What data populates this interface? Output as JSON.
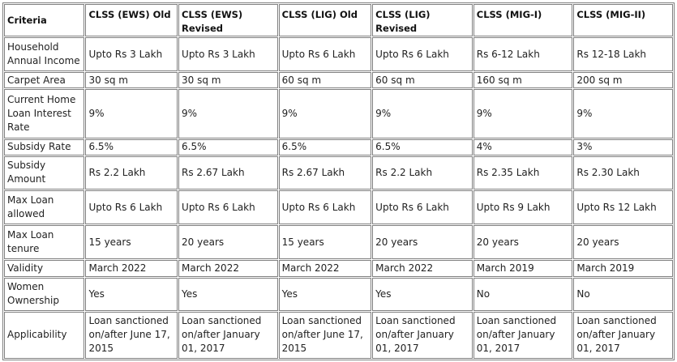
{
  "table": {
    "headers": [
      "Criteria",
      "CLSS (EWS) Old",
      "CLSS (EWS) Revised",
      "CLSS (LIG) Old",
      "CLSS (LIG) Revised",
      "CLSS (MIG-I)",
      "CLSS (MIG-II)"
    ],
    "rows": [
      {
        "criteria": "Household Annual Income",
        "cells": [
          "Upto Rs 3 Lakh",
          "Upto Rs 3 Lakh",
          "Upto Rs 6 Lakh",
          "Upto Rs 6 Lakh",
          "Rs 6-12 Lakh",
          "Rs 12-18 Lakh"
        ]
      },
      {
        "criteria": "Carpet Area",
        "cells": [
          "30 sq m",
          "30 sq m",
          "60 sq m",
          "60 sq m",
          "160 sq m",
          "200 sq m"
        ]
      },
      {
        "criteria": "Current Home Loan Interest Rate",
        "cells": [
          "9%",
          "9%",
          "9%",
          "9%",
          "9%",
          "9%"
        ]
      },
      {
        "criteria": "Subsidy Rate",
        "cells": [
          "6.5%",
          "6.5%",
          "6.5%",
          "6.5%",
          "4%",
          "3%"
        ]
      },
      {
        "criteria": "Subsidy Amount",
        "cells": [
          "Rs 2.2 Lakh",
          "Rs 2.67 Lakh",
          "Rs 2.67 Lakh",
          "Rs 2.2 Lakh",
          "Rs 2.35 Lakh",
          "Rs 2.30 Lakh"
        ]
      },
      {
        "criteria": "Max Loan allowed",
        "cells": [
          "Upto Rs 6 Lakh",
          "Upto Rs 6 Lakh",
          "Upto Rs 6 Lakh",
          "Upto Rs 6 Lakh",
          "Upto Rs 9 Lakh",
          "Upto Rs 12 Lakh"
        ]
      },
      {
        "criteria": "Max Loan tenure",
        "cells": [
          "15 years",
          "20 years",
          "15 years",
          "20 years",
          "20 years",
          "20 years"
        ]
      },
      {
        "criteria": "Validity",
        "cells": [
          "March 2022",
          "March 2022",
          "March 2022",
          "March 2022",
          "March 2019",
          "March 2019"
        ]
      },
      {
        "criteria": "Women Ownership",
        "cells": [
          "Yes",
          "Yes",
          "Yes",
          "Yes",
          "No",
          "No"
        ]
      },
      {
        "criteria": "Applicability",
        "cells": [
          "Loan sanctioned on/after June 17, 2015",
          "Loan sanctioned on/after January 01, 2017",
          "Loan sanctioned on/after June 17, 2015",
          "Loan sanctioned on/after January 01, 2017",
          "Loan sanctioned on/after January 01, 2017",
          "Loan sanctioned on/after January 01, 2017"
        ]
      }
    ]
  }
}
